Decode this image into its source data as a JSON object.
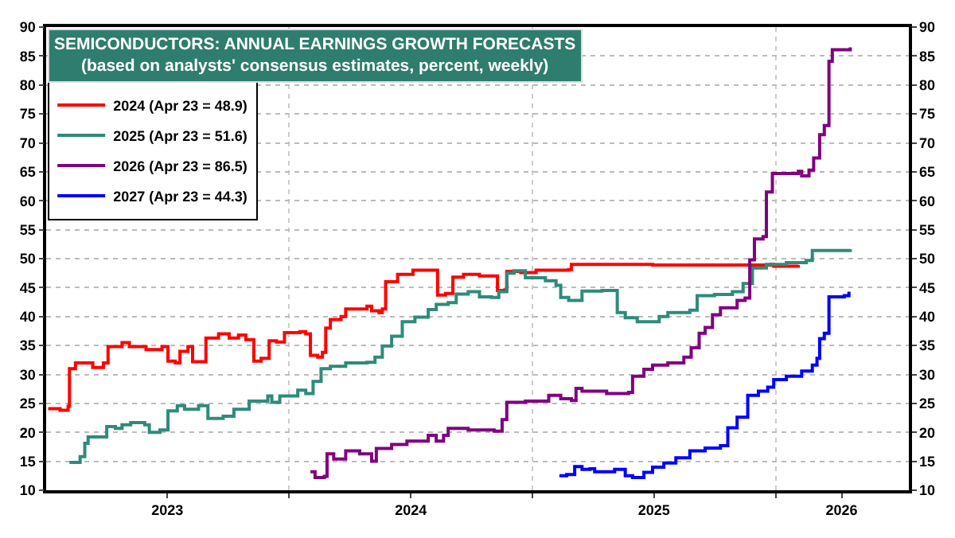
{
  "chart_data": {
    "type": "step",
    "title": "SEMICONDUCTORS: ANNUAL EARNINGS GROWTH FORECASTS",
    "subtitle": "(based on analysts' consensus estimates, percent, weekly)",
    "xlim": [
      "2023-01-01",
      "2026-07-20"
    ],
    "xticks": [
      {
        "value": "2023-07-02",
        "label": "2023"
      },
      {
        "value": "2024-01-01",
        "label": null
      },
      {
        "value": "2024-07-02",
        "label": "2024"
      },
      {
        "value": "2025-01-01",
        "label": null
      },
      {
        "value": "2025-07-02",
        "label": "2025"
      },
      {
        "value": "2026-01-01",
        "label": null
      },
      {
        "value": "2026-04-10",
        "label": "2026"
      }
    ],
    "ylim": [
      10,
      90
    ],
    "yticks": [
      10,
      15,
      20,
      25,
      30,
      35,
      40,
      45,
      50,
      55,
      60,
      65,
      70,
      75,
      80,
      85,
      90
    ],
    "y2lim": [
      10,
      90
    ],
    "y2ticks": [
      10,
      15,
      20,
      25,
      30,
      35,
      40,
      45,
      50,
      55,
      60,
      65,
      70,
      75,
      80,
      85,
      90
    ],
    "grid": true,
    "legend": "top left",
    "line_style": "solid",
    "marker": "none",
    "series": [
      {
        "name": "2024 (Apr 23 = 48.9)",
        "color": "#ff0000",
        "x": [
          "2023-01-04",
          "2023-01-22",
          "2023-02-03",
          "2023-02-05",
          "2023-02-14",
          "2023-02-28",
          "2023-03-12",
          "2023-03-28",
          "2023-04-04",
          "2023-04-25",
          "2023-05-06",
          "2023-05-31",
          "2023-06-24",
          "2023-07-03",
          "2023-07-14",
          "2023-07-21",
          "2023-08-02",
          "2023-08-09",
          "2023-08-22",
          "2023-08-29",
          "2023-09-17",
          "2023-10-03",
          "2023-10-17",
          "2023-10-28",
          "2023-11-09",
          "2023-11-20",
          "2023-12-02",
          "2023-12-13",
          "2023-12-25",
          "2024-01-17",
          "2024-01-26",
          "2024-02-02",
          "2024-02-13",
          "2024-02-20",
          "2024-02-25",
          "2024-03-03",
          "2024-03-19",
          "2024-03-26",
          "2024-04-27",
          "2024-05-04",
          "2024-05-15",
          "2024-05-20",
          "2024-05-25",
          "2024-06-12",
          "2024-07-05",
          "2024-08-04",
          "2024-08-11",
          "2024-08-23",
          "2024-09-03",
          "2024-09-19",
          "2024-10-13",
          "2024-11-04",
          "2024-11-09",
          "2024-11-20",
          "2024-11-23",
          "2024-12-14",
          "2025-01-06",
          "2025-02-24",
          "2025-02-28",
          "2025-06-30",
          "2025-11-16",
          "2025-12-25",
          "2025-12-29",
          "2026-02-04"
        ],
        "values": [
          24.1,
          23.8,
          24.5,
          31,
          32,
          32,
          31.2,
          32,
          34.8,
          35.5,
          34.8,
          34.3,
          34.8,
          32.3,
          32,
          34,
          34.8,
          32.2,
          32.2,
          36.3,
          37,
          36.3,
          36.8,
          36,
          32.3,
          32.8,
          35.8,
          35.6,
          37.2,
          37.4,
          37,
          33.3,
          33,
          33.8,
          38,
          39.5,
          40,
          41.3,
          41.8,
          41,
          40.7,
          41.3,
          46,
          47.3,
          48,
          48,
          43.7,
          44,
          46.8,
          47.3,
          47,
          47,
          44.5,
          44.6,
          47.8,
          47.6,
          48,
          48.1,
          49,
          48.9,
          48.9,
          49,
          48.7,
          48.9
        ]
      },
      {
        "name": "2025 (Apr 23 = 51.6)",
        "color": "#2e8b7a",
        "x": [
          "2023-02-05",
          "2023-02-21",
          "2023-02-28",
          "2023-03-05",
          "2023-03-23",
          "2023-04-02",
          "2023-04-15",
          "2023-04-25",
          "2023-05-08",
          "2023-05-29",
          "2023-06-05",
          "2023-06-21",
          "2023-07-03",
          "2023-07-17",
          "2023-07-28",
          "2023-08-18",
          "2023-09-01",
          "2023-09-24",
          "2023-10-10",
          "2023-11-02",
          "2023-11-30",
          "2023-12-06",
          "2023-12-18",
          "2024-01-05",
          "2024-01-14",
          "2024-01-26",
          "2024-02-06",
          "2024-02-18",
          "2024-03-03",
          "2024-03-26",
          "2024-04-27",
          "2024-05-09",
          "2024-05-20",
          "2024-06-03",
          "2024-06-19",
          "2024-07-08",
          "2024-07-28",
          "2024-08-09",
          "2024-08-27",
          "2024-09-08",
          "2024-09-26",
          "2024-10-13",
          "2024-10-31",
          "2024-11-11",
          "2024-11-23",
          "2024-12-04",
          "2024-12-21",
          "2025-01-20",
          "2025-02-05",
          "2025-02-12",
          "2025-02-24",
          "2025-03-16",
          "2025-04-15",
          "2025-05-08",
          "2025-05-20",
          "2025-06-07",
          "2025-07-10",
          "2025-07-23",
          "2025-08-25",
          "2025-09-05",
          "2025-10-01",
          "2025-10-28",
          "2025-11-13",
          "2025-11-20",
          "2025-11-27",
          "2025-12-18",
          "2026-01-17",
          "2026-02-16",
          "2026-02-25",
          "2026-04-23"
        ],
        "values": [
          14.8,
          15.8,
          18.1,
          19.2,
          19.2,
          21,
          20.7,
          21.3,
          21.7,
          21.3,
          20,
          20.4,
          23.7,
          24.6,
          24,
          24.6,
          22.4,
          22.8,
          24,
          25.4,
          26.3,
          25.2,
          26.3,
          26.3,
          27.3,
          26.7,
          28.8,
          31,
          31.4,
          32,
          32.1,
          33,
          34.9,
          36.6,
          39.1,
          39.9,
          41.2,
          42.1,
          42.4,
          43.9,
          44.3,
          43.4,
          43.3,
          44.3,
          47.5,
          47.9,
          46.7,
          46.2,
          45.4,
          43.3,
          42.8,
          44.4,
          44.5,
          40.7,
          39.8,
          39.1,
          40,
          40.7,
          41.1,
          43.6,
          43.8,
          44.3,
          45.7,
          45.7,
          48.4,
          49,
          49.3,
          49.7,
          51.4,
          51.6
        ]
      },
      {
        "name": "2026 (Apr 23 = 86.5)",
        "color": "#800080",
        "x": [
          "2024-02-02",
          "2024-02-09",
          "2024-02-23",
          "2024-02-27",
          "2024-03-08",
          "2024-03-26",
          "2024-04-16",
          "2024-05-04",
          "2024-05-11",
          "2024-05-27",
          "2024-06-03",
          "2024-06-26",
          "2024-07-28",
          "2024-08-09",
          "2024-08-20",
          "2024-08-27",
          "2024-09-26",
          "2024-11-04",
          "2024-11-16",
          "2024-11-23",
          "2024-12-21",
          "2025-01-25",
          "2025-02-12",
          "2025-02-28",
          "2025-03-07",
          "2025-03-16",
          "2025-04-22",
          "2025-05-25",
          "2025-05-31",
          "2025-06-17",
          "2025-06-30",
          "2025-07-23",
          "2025-08-16",
          "2025-08-27",
          "2025-09-08",
          "2025-09-17",
          "2025-09-28",
          "2025-10-10",
          "2025-11-04",
          "2025-11-16",
          "2025-11-23",
          "2025-11-30",
          "2025-12-13",
          "2025-12-18",
          "2025-12-27",
          "2026-02-04",
          "2026-02-09",
          "2026-02-20",
          "2026-02-27",
          "2026-03-08",
          "2026-03-15",
          "2026-03-22",
          "2026-03-27",
          "2026-04-12",
          "2026-04-23"
        ],
        "values": [
          13.2,
          12.2,
          12.4,
          16.3,
          15.4,
          16.8,
          16.3,
          15,
          17.2,
          17.2,
          17.9,
          18.5,
          19.5,
          18.5,
          19.5,
          20.7,
          20.4,
          20.2,
          22.2,
          25.2,
          25.4,
          26.4,
          25.8,
          25.5,
          27.6,
          27.1,
          26.7,
          26.9,
          29.7,
          30.9,
          31.6,
          32,
          33,
          34.6,
          37.1,
          38.1,
          40.3,
          41.5,
          42.8,
          43.2,
          49.8,
          53.4,
          53.8,
          61.5,
          64.7,
          65.1,
          64.3,
          65.3,
          67.4,
          71.4,
          73,
          84.1,
          86.1,
          86.1,
          86.5
        ]
      },
      {
        "name": "2027 (Apr 23 = 44.3)",
        "color": "#0000ff",
        "x": [
          "2025-02-10",
          "2025-02-21",
          "2025-03-05",
          "2025-03-16",
          "2025-03-28",
          "2025-04-04",
          "2025-05-04",
          "2025-05-15",
          "2025-05-20",
          "2025-05-31",
          "2025-06-17",
          "2025-06-30",
          "2025-07-17",
          "2025-08-04",
          "2025-08-25",
          "2025-09-17",
          "2025-10-10",
          "2025-10-21",
          "2025-11-04",
          "2025-11-20",
          "2025-12-06",
          "2025-12-20",
          "2025-12-29",
          "2026-01-17",
          "2026-02-09",
          "2026-02-25",
          "2026-03-04",
          "2026-03-08",
          "2026-03-15",
          "2026-03-22",
          "2026-04-14",
          "2026-04-21"
        ],
        "values": [
          12.5,
          12.7,
          14.1,
          13.6,
          13.7,
          13.2,
          13.6,
          13.6,
          12.5,
          12.2,
          13.1,
          14,
          14.7,
          15.6,
          16.8,
          17.3,
          17.7,
          20.8,
          22.6,
          26.4,
          27.1,
          27.8,
          29.1,
          29.7,
          30.6,
          31.6,
          32.8,
          36.2,
          37.1,
          43.4,
          43.6,
          44.3
        ]
      }
    ]
  }
}
